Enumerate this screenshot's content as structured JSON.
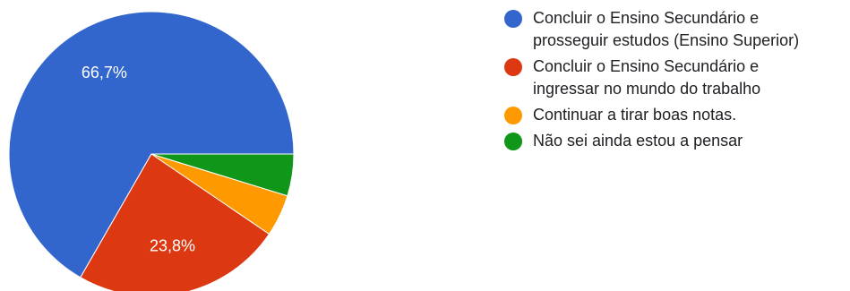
{
  "chart_data": {
    "type": "pie",
    "title": "",
    "slices": [
      {
        "label": "Concluir o Ensino Secundário e\nprosseguir estudos (Ensino Superior)",
        "value": 66.7,
        "display_label": "66,7%",
        "color": "#3366cc"
      },
      {
        "label": "Concluir o Ensino Secundário e\ningressar no mundo do trabalho",
        "value": 23.8,
        "display_label": "23,8%",
        "color": "#dc3912"
      },
      {
        "label": "Continuar a tirar boas notas.",
        "value": 4.75,
        "display_label": "",
        "color": "#ff9900"
      },
      {
        "label": "Não sei ainda estou a pensar",
        "value": 4.75,
        "display_label": "",
        "color": "#109618"
      }
    ],
    "start_angle": "3 o'clock",
    "direction": "counter-clockwise",
    "legend_position": "right"
  }
}
